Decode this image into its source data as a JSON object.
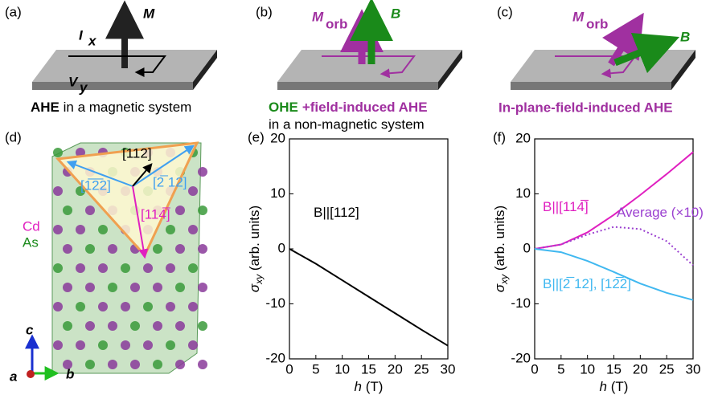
{
  "panels": {
    "a": {
      "label": "(a)",
      "m": "M",
      "i": "I",
      "i_sub": "x",
      "v": "V",
      "v_sub": "y",
      "caption_bold": "AHE",
      "caption_rest": " in a magnetic system"
    },
    "b": {
      "label": "(b)",
      "m": "M",
      "m_sub": "orb",
      "b": "B",
      "caption_ohe": "OHE",
      "caption_plus": "+field-induced AHE",
      "caption_line2": "in a non-magnetic system"
    },
    "c": {
      "label": "(c)",
      "m": "M",
      "m_sub": "orb",
      "b": "B",
      "caption": "In-plane-field-induced AHE"
    },
    "d": {
      "label": "(d)",
      "dir_112": "[112]",
      "dir_1m22": "[1̅2̅2]",
      "dir_m212": "[2̅ 12]",
      "dir_114m": "[114̅]",
      "cd": "Cd",
      "as": "As",
      "axis_c": "c",
      "axis_a": "a",
      "axis_b": "b"
    }
  },
  "chart_data": [
    {
      "type": "line",
      "label": "(e)",
      "xlabel_var": "h",
      "xlabel_unit": " (T)",
      "ylabel_var": "σ",
      "ylabel_sub": "xy",
      "ylabel_unit": " (arb. units)",
      "x": [
        0,
        5,
        10,
        15,
        20,
        25,
        30
      ],
      "xlim": [
        0,
        30
      ],
      "xticks": [
        0,
        5,
        10,
        15,
        20,
        25,
        30
      ],
      "ylim": [
        -20,
        20
      ],
      "yticks": [
        -20,
        -10,
        0,
        10,
        20
      ],
      "annotation": "B||[112]",
      "series": [
        {
          "color": "#000000",
          "values": [
            0,
            -2.7,
            -5.7,
            -8.7,
            -11.7,
            -14.7,
            -17.6
          ]
        }
      ]
    },
    {
      "type": "line",
      "label": "(f)",
      "xlabel_var": "h",
      "xlabel_unit": " (T)",
      "ylabel_var": "σ",
      "ylabel_sub": "xy",
      "ylabel_unit": " (arb. units)",
      "x": [
        0,
        5,
        10,
        15,
        20,
        25,
        30
      ],
      "xlim": [
        0,
        30
      ],
      "xticks": [
        0,
        5,
        10,
        15,
        20,
        25,
        30
      ],
      "ylim": [
        -20,
        20
      ],
      "yticks": [
        -20,
        -10,
        0,
        10,
        20
      ],
      "series": [
        {
          "name": "B||[114̅]",
          "color": "#e020c0",
          "style": "solid",
          "values": [
            0,
            0.8,
            3,
            6.2,
            9.8,
            13.6,
            17.6
          ]
        },
        {
          "name": "Average (×10)",
          "color": "#9b40d0",
          "style": "dotted",
          "values": [
            0,
            0.8,
            2.6,
            4,
            3.6,
            1.4,
            -3
          ]
        },
        {
          "name": "B||[2̅ 12], [12̅2]",
          "color": "#40b8f0",
          "style": "solid",
          "values": [
            0,
            -0.6,
            -2.2,
            -4.2,
            -6.3,
            -8,
            -9.3
          ]
        }
      ]
    }
  ]
}
